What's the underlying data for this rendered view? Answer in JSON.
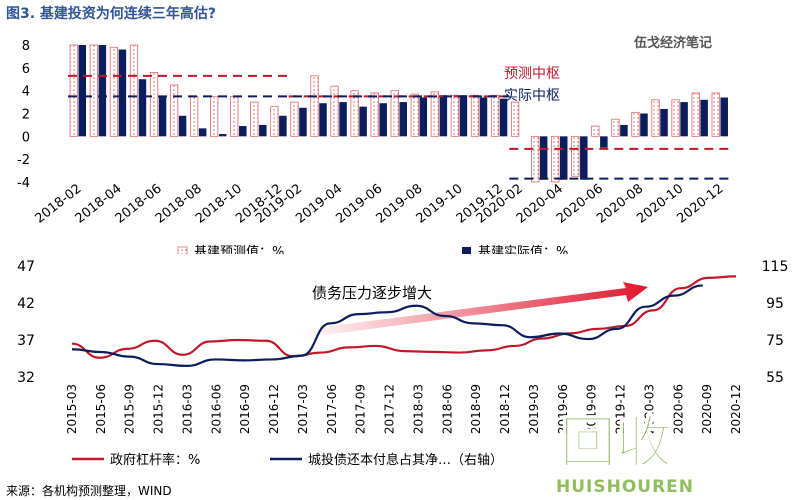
{
  "header": {
    "title": "图3. 基建投资为何连续三年高估?",
    "brand": "伍戈经济笔记"
  },
  "source": "来源：各机构预测整理，WIND",
  "watermark": {
    "text": "回收",
    "sub": "HUISHOUREN"
  },
  "colors": {
    "red": "#c0182a",
    "navy": "#0b1d5c",
    "hatch": "#e06a6a",
    "arrow_start": "#ffffff",
    "arrow_end": "#e0162b",
    "watermark_green": "#7cb342"
  },
  "chart_data": [
    {
      "type": "bar",
      "title": "",
      "ylim": [
        -4,
        8
      ],
      "yticks": [
        8,
        6,
        4,
        2,
        0,
        -2,
        -4
      ],
      "xticks": [
        "2018-02",
        "2018-04",
        "2018-06",
        "2018-08",
        "2018-10",
        "2018-12",
        "2019-02",
        "2019-04",
        "2019-06",
        "2019-08",
        "2019-10",
        "2019-12",
        "2020-02",
        "2020-04",
        "2020-06",
        "2020-08",
        "2020-10",
        "2020-12"
      ],
      "categories": [
        "2018-02",
        "2018-03",
        "2018-04",
        "2018-05",
        "2018-06",
        "2018-07",
        "2018-08",
        "2018-09",
        "2018-10",
        "2018-11",
        "2018-12",
        "2019-02",
        "2019-03",
        "2019-04",
        "2019-05",
        "2019-06",
        "2019-07",
        "2019-08",
        "2019-09",
        "2019-10",
        "2019-11",
        "2019-12",
        "2020-02",
        "2020-03",
        "2020-04",
        "2020-05",
        "2020-06",
        "2020-07",
        "2020-08",
        "2020-09",
        "2020-10",
        "2020-11",
        "2020-12"
      ],
      "series": [
        {
          "name": "基建预测值：%",
          "values": [
            8.0,
            8.0,
            7.8,
            8.0,
            5.6,
            4.5,
            3.5,
            3.5,
            3.5,
            3.0,
            2.6,
            3.0,
            5.3,
            4.4,
            4.0,
            3.8,
            4.0,
            3.7,
            3.9,
            3.6,
            3.6,
            3.6,
            3.0,
            -4.0,
            -4.0,
            -3.5,
            0.9,
            1.5,
            2.1,
            3.2,
            3.2,
            3.8,
            3.8
          ]
        },
        {
          "name": "基建实际值：%",
          "values": [
            8.0,
            8.0,
            7.6,
            5.0,
            3.5,
            1.8,
            0.7,
            0.2,
            0.9,
            1.0,
            1.8,
            2.5,
            2.9,
            3.0,
            2.6,
            2.9,
            3.0,
            3.4,
            3.6,
            3.6,
            3.4,
            3.3,
            null,
            -3.8,
            -3.8,
            -3.8,
            -1.0,
            1.0,
            2.0,
            2.4,
            3.0,
            3.2,
            3.4
          ]
        }
      ],
      "reference_lines": [
        {
          "name": "预测中枢",
          "segments": [
            {
              "from": "2018-02",
              "to": "2018-12",
              "value": 5.3
            },
            {
              "from": "2019-02",
              "to": "2019-12",
              "value": 3.5
            },
            {
              "from": "2020-02",
              "to": "2020-12",
              "value": -1.1
            }
          ]
        },
        {
          "name": "实际中枢",
          "segments": [
            {
              "from": "2018-02",
              "to": "2019-12",
              "value": 3.5
            },
            {
              "from": "2020-02",
              "to": "2020-12",
              "value": -3.7
            }
          ]
        }
      ],
      "legend": {
        "placement": "bottom"
      }
    },
    {
      "type": "line",
      "title": "",
      "annotation": "债务压力逐步增大",
      "left_axis": {
        "ylim": [
          32,
          47
        ],
        "yticks": [
          47,
          42,
          37,
          32
        ]
      },
      "right_axis": {
        "ylim": [
          55,
          115
        ],
        "yticks": [
          115,
          95,
          75,
          55
        ]
      },
      "xticks": [
        "2015-03",
        "2015-06",
        "2015-09",
        "2015-12",
        "2016-03",
        "2016-06",
        "2016-09",
        "2016-12",
        "2017-03",
        "2017-06",
        "2017-09",
        "2017-12",
        "2018-03",
        "2018-06",
        "2018-09",
        "2018-12",
        "2019-03",
        "2019-06",
        "2019-09",
        "2019-12",
        "2020-03",
        "2020-06",
        "2020-09",
        "2020-12"
      ],
      "series": [
        {
          "name": "政府杠杆率：%",
          "axis": "left",
          "values": [
            36.5,
            34.6,
            35.8,
            36.9,
            35.0,
            36.8,
            37.0,
            36.9,
            34.8,
            35.3,
            36.0,
            36.2,
            35.5,
            35.4,
            35.3,
            35.6,
            36.2,
            37.2,
            37.9,
            38.5,
            38.9,
            41.0,
            44.0,
            45.4,
            45.6
          ]
        },
        {
          "name": "城投债还本付息占其净…（右轴）",
          "axis": "right",
          "values": [
            70.0,
            68.5,
            66.0,
            62.0,
            61.0,
            64.5,
            64.0,
            64.5,
            66.5,
            84.0,
            89.0,
            90.0,
            93.5,
            88.0,
            84.0,
            83.0,
            76.5,
            78.5,
            75.5,
            81.0,
            93.0,
            99.0,
            104.5
          ]
        }
      ],
      "legend": {
        "placement": "bottom"
      }
    }
  ]
}
